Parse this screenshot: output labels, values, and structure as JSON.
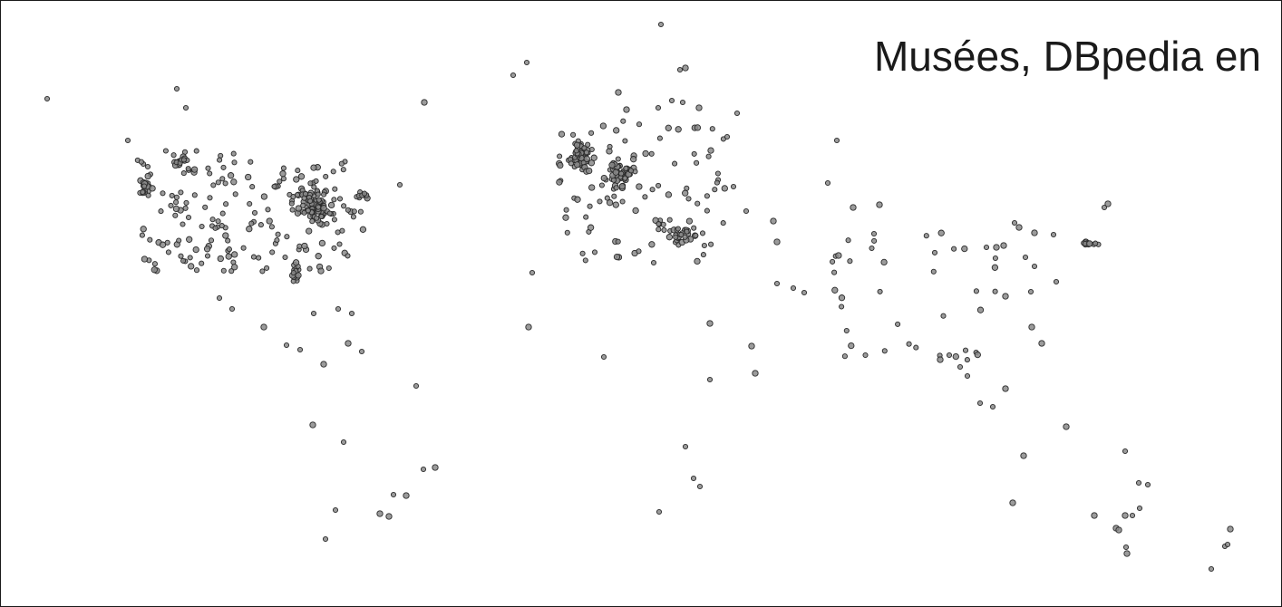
{
  "title": "Musées, DBpedia en",
  "colors": {
    "background": "#ffffff",
    "border": "#1a1a1a",
    "point_fill": "#8a8a8a",
    "point_stroke": "#2a2a2a"
  }
}
